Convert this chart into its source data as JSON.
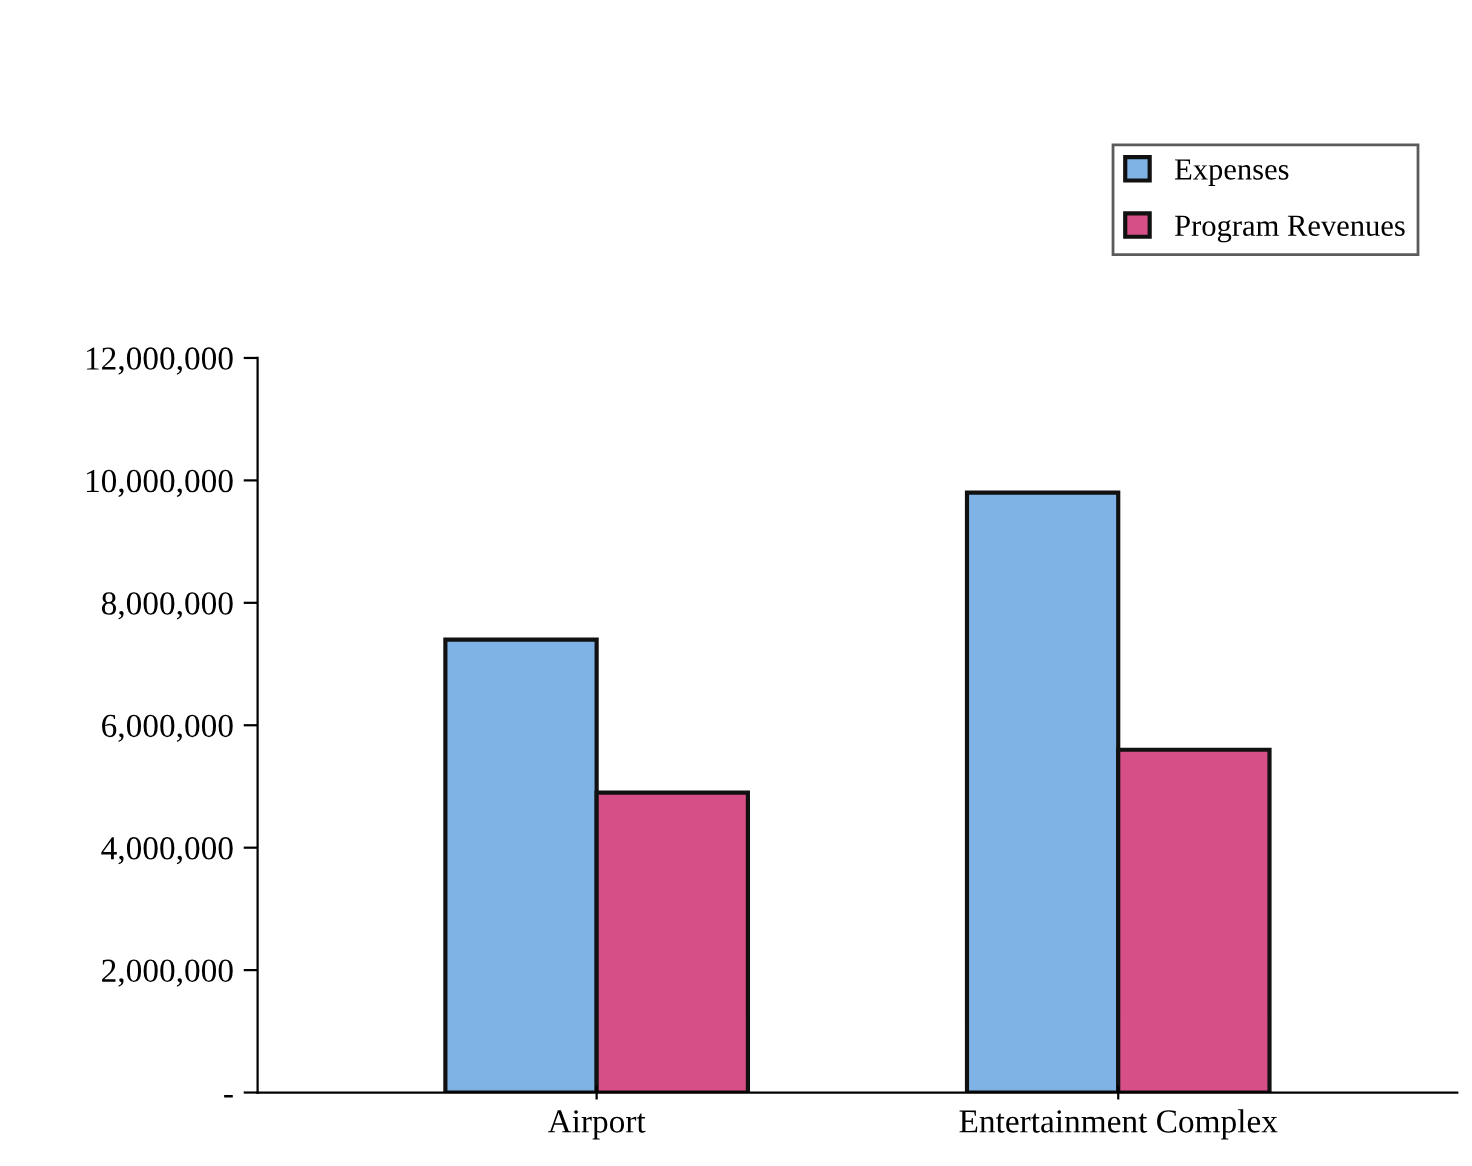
{
  "chart_data": {
    "type": "bar",
    "categories": [
      "Airport",
      "Entertainment Complex"
    ],
    "series": [
      {
        "name": "Expenses",
        "color": "#7fb3e6",
        "values": [
          7400000,
          9800000
        ]
      },
      {
        "name": "Program Revenues",
        "color": "#d64f86",
        "values": [
          4900000,
          5600000
        ]
      }
    ],
    "ylim": [
      0,
      12000000
    ],
    "yticks": [
      {
        "value": 0,
        "label": "-"
      },
      {
        "value": 2000000,
        "label": "2,000,000"
      },
      {
        "value": 4000000,
        "label": "4,000,000"
      },
      {
        "value": 6000000,
        "label": "6,000,000"
      },
      {
        "value": 8000000,
        "label": "8,000,000"
      },
      {
        "value": 10000000,
        "label": "10,000,000"
      },
      {
        "value": 12000000,
        "label": "12,000,000"
      }
    ],
    "grid": false,
    "legend": "top right"
  }
}
